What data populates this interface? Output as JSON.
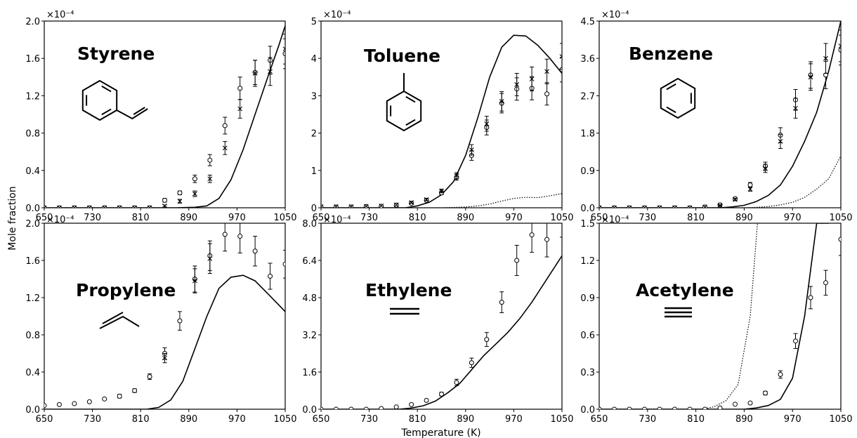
{
  "figure": {
    "ylabel": "Mole fraction",
    "xlabel": "Temperature (K)"
  },
  "chart_data": [
    {
      "type": "line",
      "panel": "top-left",
      "title": "Styrene",
      "molecule": "styrene",
      "multiplier": "×10⁻⁴",
      "xlim": [
        650,
        1050
      ],
      "ylim": [
        0,
        2.0
      ],
      "xticks": [
        650,
        730,
        810,
        890,
        970,
        1050
      ],
      "yticks": [
        "0.0",
        "0.4",
        "0.8",
        "1.2",
        "1.6",
        "2.0"
      ],
      "series": [
        {
          "kind": "model-solid",
          "x": [
            650,
            810,
            870,
            900,
            920,
            940,
            960,
            980,
            1000,
            1020,
            1040,
            1050
          ],
          "y": [
            0,
            0,
            0,
            0.005,
            0.02,
            0.1,
            0.3,
            0.62,
            1.0,
            1.38,
            1.75,
            1.95
          ]
        },
        {
          "kind": "exp-circle",
          "x": [
            650,
            675,
            700,
            725,
            750,
            775,
            800,
            825,
            850,
            875,
            900,
            925,
            950,
            975,
            1000,
            1025,
            1050
          ],
          "y": [
            0,
            0,
            0,
            0,
            0,
            0,
            0,
            0,
            0.08,
            0.16,
            0.31,
            0.51,
            0.88,
            1.28,
            1.45,
            1.58,
            1.65
          ],
          "err": [
            0,
            0,
            0,
            0,
            0,
            0,
            0,
            0,
            0.02,
            0.02,
            0.04,
            0.06,
            0.09,
            0.12,
            0.13,
            0.15,
            0.16
          ]
        },
        {
          "kind": "exp-cross",
          "x": [
            650,
            675,
            700,
            725,
            750,
            775,
            800,
            825,
            850,
            875,
            900,
            925,
            950,
            975,
            1000,
            1025,
            1050
          ],
          "y": [
            0,
            0,
            0,
            0,
            0,
            0,
            0,
            0,
            0.02,
            0.07,
            0.15,
            0.31,
            0.64,
            1.06,
            1.44,
            1.46,
            1.7
          ],
          "err": [
            0,
            0,
            0,
            0,
            0,
            0,
            0,
            0,
            0.01,
            0.02,
            0.03,
            0.04,
            0.07,
            0.1,
            0.14,
            0.15,
            0.16
          ]
        }
      ]
    },
    {
      "type": "line",
      "panel": "top-middle",
      "title": "Toluene",
      "molecule": "toluene",
      "multiplier": "×10⁻⁴",
      "xlim": [
        650,
        1050
      ],
      "ylim": [
        0,
        5
      ],
      "xticks": [
        650,
        730,
        810,
        890,
        970,
        1050
      ],
      "yticks": [
        "0",
        "1",
        "2",
        "3",
        "4",
        "5"
      ],
      "series": [
        {
          "kind": "model-solid",
          "x": [
            650,
            790,
            810,
            830,
            850,
            870,
            890,
            910,
            930,
            950,
            970,
            990,
            1010,
            1030,
            1050
          ],
          "y": [
            0,
            0,
            0.05,
            0.15,
            0.35,
            0.7,
            1.4,
            2.4,
            3.5,
            4.3,
            4.62,
            4.6,
            4.35,
            4.0,
            3.6
          ]
        },
        {
          "kind": "model-dotted",
          "x": [
            650,
            850,
            870,
            890,
            910,
            930,
            950,
            970,
            990,
            1010,
            1030,
            1050
          ],
          "y": [
            0,
            0,
            0.01,
            0.02,
            0.05,
            0.1,
            0.18,
            0.25,
            0.28,
            0.27,
            0.32,
            0.38
          ]
        },
        {
          "kind": "exp-circle",
          "x": [
            650,
            675,
            700,
            725,
            750,
            775,
            800,
            825,
            850,
            875,
            900,
            925,
            950,
            975,
            1000,
            1025,
            1050
          ],
          "y": [
            0.02,
            0.02,
            0.02,
            0.03,
            0.04,
            0.07,
            0.12,
            0.2,
            0.4,
            0.82,
            1.4,
            2.15,
            2.8,
            3.18,
            3.2,
            3.05,
            3.7
          ],
          "err": [
            0,
            0,
            0,
            0,
            0,
            0,
            0.02,
            0.03,
            0.05,
            0.08,
            0.13,
            0.2,
            0.26,
            0.3,
            0.31,
            0.3,
            0.33
          ]
        },
        {
          "kind": "exp-cross",
          "x": [
            650,
            675,
            700,
            725,
            750,
            775,
            800,
            825,
            850,
            875,
            900,
            925,
            950,
            975,
            1000,
            1025,
            1050
          ],
          "y": [
            0.03,
            0.03,
            0.03,
            0.04,
            0.05,
            0.08,
            0.14,
            0.22,
            0.45,
            0.86,
            1.55,
            2.25,
            2.85,
            3.3,
            3.45,
            3.65,
            4.05
          ],
          "err": [
            0,
            0,
            0,
            0,
            0,
            0,
            0.02,
            0.03,
            0.05,
            0.08,
            0.14,
            0.2,
            0.26,
            0.3,
            0.32,
            0.33,
            0.35
          ]
        }
      ]
    },
    {
      "type": "line",
      "panel": "top-right",
      "title": "Benzene",
      "molecule": "benzene",
      "multiplier": "×10⁻⁴",
      "xlim": [
        650,
        1050
      ],
      "ylim": [
        0,
        4.5
      ],
      "xticks": [
        650,
        730,
        810,
        890,
        970,
        1050
      ],
      "yticks": [
        "0.0",
        "0.9",
        "1.8",
        "2.7",
        "3.6",
        "4.5"
      ],
      "series": [
        {
          "kind": "model-solid",
          "x": [
            650,
            850,
            870,
            890,
            910,
            930,
            950,
            970,
            990,
            1010,
            1030,
            1050
          ],
          "y": [
            0,
            0,
            0.02,
            0.06,
            0.15,
            0.3,
            0.55,
            1.0,
            1.6,
            2.3,
            3.3,
            4.5
          ]
        },
        {
          "kind": "model-dotted",
          "x": [
            650,
            890,
            910,
            930,
            950,
            970,
            990,
            1010,
            1030,
            1050
          ],
          "y": [
            0,
            0,
            0.01,
            0.03,
            0.07,
            0.13,
            0.25,
            0.45,
            0.7,
            1.25
          ]
        },
        {
          "kind": "exp-circle",
          "x": [
            650,
            675,
            700,
            725,
            750,
            775,
            800,
            825,
            850,
            875,
            900,
            925,
            950,
            975,
            1000,
            1025,
            1050
          ],
          "y": [
            0,
            0,
            0,
            0,
            0,
            0,
            0,
            0.02,
            0.07,
            0.22,
            0.55,
            1.0,
            1.75,
            2.6,
            3.2,
            3.2,
            3.8
          ],
          "err": [
            0,
            0,
            0,
            0,
            0,
            0,
            0,
            0,
            0.01,
            0.03,
            0.06,
            0.1,
            0.18,
            0.25,
            0.32,
            0.33,
            0.36
          ]
        },
        {
          "kind": "exp-cross",
          "x": [
            650,
            675,
            700,
            725,
            750,
            775,
            800,
            825,
            850,
            875,
            900,
            925,
            950,
            975,
            1000,
            1025,
            1050
          ],
          "y": [
            0,
            0,
            0,
            0,
            0,
            0,
            0,
            0.02,
            0.06,
            0.2,
            0.45,
            0.95,
            1.6,
            2.4,
            3.15,
            3.6,
            3.9
          ],
          "err": [
            0,
            0,
            0,
            0,
            0,
            0,
            0,
            0,
            0.01,
            0.03,
            0.05,
            0.1,
            0.17,
            0.24,
            0.32,
            0.36,
            0.38
          ]
        }
      ]
    },
    {
      "type": "line",
      "panel": "bottom-left",
      "title": "Propylene",
      "molecule": "propylene",
      "multiplier": "×10⁻⁴",
      "xlim": [
        650,
        1050
      ],
      "ylim": [
        0,
        2.0
      ],
      "xticks": [
        650,
        730,
        810,
        890,
        970,
        1050
      ],
      "yticks": [
        "0.0",
        "0.4",
        "0.8",
        "1.2",
        "1.6",
        "2.0"
      ],
      "series": [
        {
          "kind": "model-solid",
          "x": [
            650,
            820,
            840,
            860,
            880,
            900,
            920,
            940,
            960,
            980,
            1000,
            1020,
            1050
          ],
          "y": [
            0,
            0,
            0.02,
            0.1,
            0.3,
            0.65,
            1.0,
            1.3,
            1.42,
            1.44,
            1.38,
            1.25,
            1.05
          ]
        },
        {
          "kind": "exp-circle",
          "x": [
            650,
            675,
            700,
            725,
            750,
            775,
            800,
            825,
            850,
            875,
            900,
            925,
            950,
            975,
            1000,
            1025,
            1050
          ],
          "y": [
            0.04,
            0.05,
            0.06,
            0.08,
            0.11,
            0.14,
            0.2,
            0.35,
            0.6,
            0.95,
            1.4,
            1.65,
            1.88,
            1.86,
            1.7,
            1.43,
            1.56
          ],
          "err": [
            0,
            0,
            0,
            0.01,
            0.01,
            0.02,
            0.02,
            0.03,
            0.06,
            0.1,
            0.14,
            0.16,
            0.18,
            0.18,
            0.16,
            0.14,
            0.15
          ]
        },
        {
          "kind": "exp-cross",
          "x": [
            850,
            900,
            925
          ],
          "y": [
            0.55,
            1.38,
            1.62
          ],
          "err": [
            0.05,
            0.13,
            0.16
          ]
        }
      ]
    },
    {
      "type": "line",
      "panel": "bottom-middle",
      "title": "Ethylene",
      "molecule": "ethylene",
      "multiplier": "×10⁻⁴",
      "xlim": [
        650,
        1050
      ],
      "ylim": [
        0,
        8.0
      ],
      "xticks": [
        650,
        730,
        810,
        890,
        970,
        1050
      ],
      "yticks": [
        "0.0",
        "1.6",
        "3.2",
        "4.8",
        "6.4",
        "8.0"
      ],
      "series": [
        {
          "kind": "model-solid",
          "x": [
            650,
            780,
            800,
            820,
            840,
            860,
            880,
            900,
            920,
            940,
            960,
            980,
            1000,
            1020,
            1050
          ],
          "y": [
            0,
            0,
            0.05,
            0.15,
            0.35,
            0.7,
            1.1,
            1.7,
            2.3,
            2.8,
            3.3,
            3.9,
            4.6,
            5.4,
            6.6
          ]
        },
        {
          "kind": "exp-circle",
          "x": [
            650,
            675,
            700,
            725,
            750,
            775,
            800,
            825,
            850,
            875,
            900,
            925,
            950,
            975,
            1000,
            1025,
            1050
          ],
          "y": [
            0,
            0,
            0,
            0,
            0.03,
            0.1,
            0.2,
            0.38,
            0.65,
            1.15,
            2.0,
            3.0,
            4.6,
            6.4,
            7.5,
            7.3,
            8.2
          ],
          "err": [
            0,
            0,
            0,
            0,
            0,
            0.02,
            0.03,
            0.05,
            0.08,
            0.14,
            0.2,
            0.3,
            0.45,
            0.65,
            0.75,
            0.75,
            0.8
          ]
        }
      ]
    },
    {
      "type": "line",
      "panel": "bottom-right",
      "title": "Acetylene",
      "molecule": "acetylene",
      "multiplier": "×10⁻⁴",
      "xlim": [
        650,
        1050
      ],
      "ylim": [
        0,
        1.5
      ],
      "xticks": [
        650,
        730,
        810,
        890,
        970,
        1050
      ],
      "yticks": [
        "0.0",
        "0.3",
        "0.6",
        "0.9",
        "1.2",
        "1.5"
      ],
      "series": [
        {
          "kind": "model-solid",
          "x": [
            650,
            890,
            910,
            930,
            950,
            970,
            990,
            1010,
            1030
          ],
          "y": [
            0,
            0,
            0.01,
            0.03,
            0.08,
            0.25,
            0.75,
            1.5,
            1.5
          ]
        },
        {
          "kind": "model-dotted",
          "x": [
            650,
            820,
            840,
            860,
            880,
            900,
            912
          ],
          "y": [
            0,
            0,
            0.02,
            0.07,
            0.2,
            0.75,
            1.5
          ]
        },
        {
          "kind": "exp-circle",
          "x": [
            650,
            675,
            700,
            725,
            750,
            775,
            800,
            825,
            850,
            875,
            900,
            925,
            950,
            975,
            1000,
            1025,
            1050
          ],
          "y": [
            0,
            0,
            0,
            0,
            0,
            0,
            0,
            0,
            0.01,
            0.04,
            0.05,
            0.13,
            0.28,
            0.55,
            0.9,
            1.02,
            1.37
          ],
          "err": [
            0,
            0,
            0,
            0,
            0,
            0,
            0,
            0,
            0,
            0.005,
            0.008,
            0.015,
            0.03,
            0.06,
            0.09,
            0.1,
            0.13
          ]
        }
      ]
    }
  ]
}
